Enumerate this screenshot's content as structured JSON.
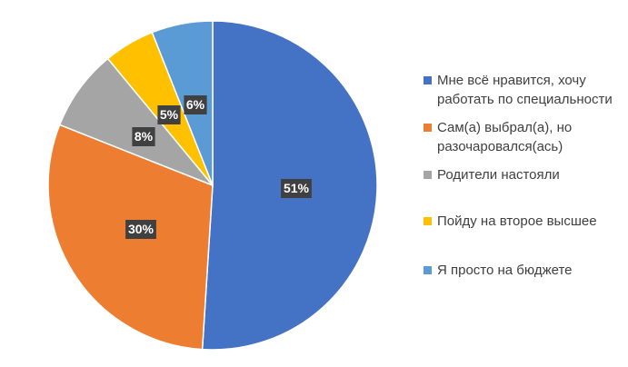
{
  "chart_data": {
    "type": "pie",
    "categories": [
      "Мне всё нравится, хочу работать по специальности",
      "Сам(а) выбрал(а), но разочаровался(ась)",
      "Родители настояли",
      "Пойду на второе высшее",
      "Я просто на бюджете"
    ],
    "values": [
      51,
      30,
      8,
      5,
      6
    ],
    "data_labels": [
      "51%",
      "30%",
      "8%",
      "5%",
      "6%"
    ],
    "colors": [
      "#4472C4",
      "#ED7D31",
      "#A5A5A5",
      "#FFC000",
      "#5B9BD5"
    ],
    "legend_position": "right"
  }
}
